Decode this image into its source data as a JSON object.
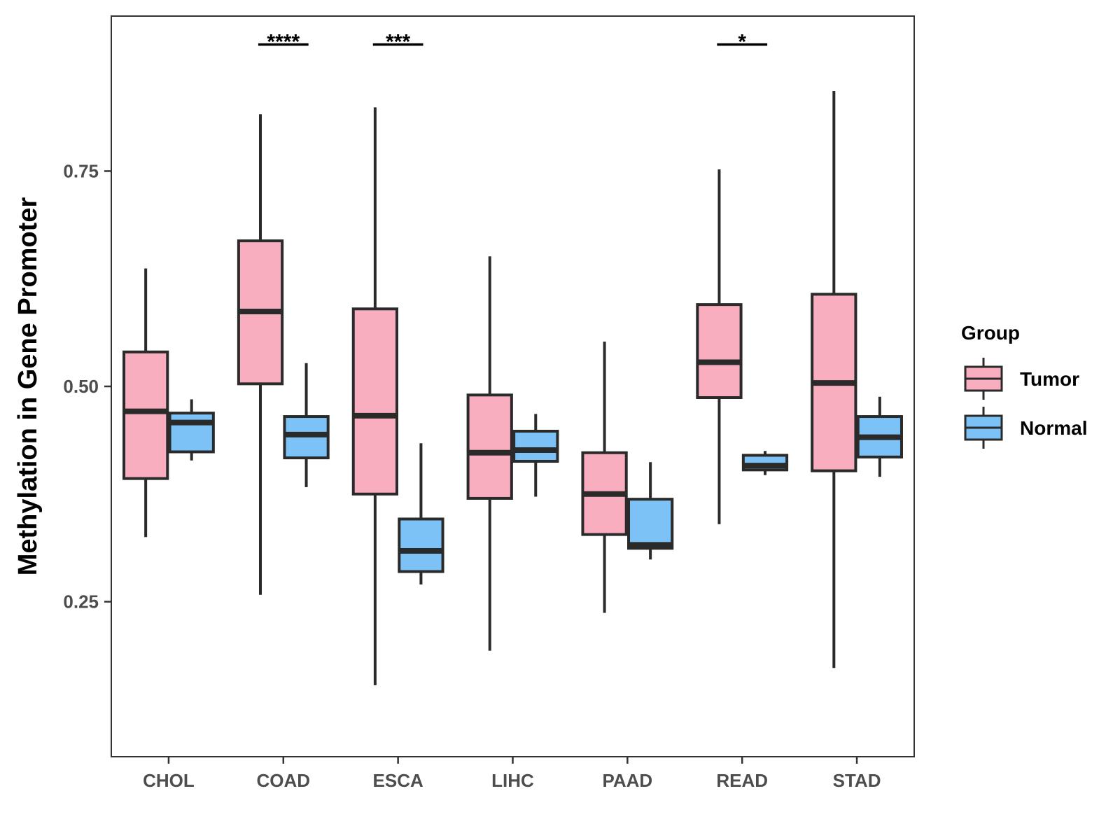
{
  "chart_data": {
    "type": "boxplot",
    "title": "",
    "xlabel": "",
    "ylabel": "Methylation in Gene Promoter",
    "ylim": [
      0.07,
      0.93
    ],
    "yticks": [
      0.25,
      0.5,
      0.75
    ],
    "ytick_labels": [
      "0.25",
      "0.50",
      "0.75"
    ],
    "grid": false,
    "legend_position": "right",
    "categories": [
      "CHOL",
      "COAD",
      "ESCA",
      "LIHC",
      "PAAD",
      "READ",
      "STAD"
    ],
    "legend": {
      "title": "Group",
      "entries": [
        {
          "name": "Tumor",
          "color": "#F9AEC0"
        },
        {
          "name": "Normal",
          "color": "#7CC2F6"
        }
      ]
    },
    "series": [
      {
        "name": "Tumor",
        "color": "#F9AEC0",
        "boxes": [
          {
            "category": "CHOL",
            "whisker_low": 0.325,
            "q1": 0.393,
            "median": 0.471,
            "q3": 0.54,
            "whisker_high": 0.637
          },
          {
            "category": "COAD",
            "whisker_low": 0.258,
            "q1": 0.503,
            "median": 0.587,
            "q3": 0.669,
            "whisker_high": 0.816
          },
          {
            "category": "ESCA",
            "whisker_low": 0.153,
            "q1": 0.375,
            "median": 0.466,
            "q3": 0.59,
            "whisker_high": 0.824
          },
          {
            "category": "LIHC",
            "whisker_low": 0.193,
            "q1": 0.37,
            "median": 0.423,
            "q3": 0.49,
            "whisker_high": 0.651
          },
          {
            "category": "PAAD",
            "whisker_low": 0.237,
            "q1": 0.328,
            "median": 0.375,
            "q3": 0.423,
            "whisker_high": 0.552
          },
          {
            "category": "READ",
            "whisker_low": 0.34,
            "q1": 0.487,
            "median": 0.528,
            "q3": 0.595,
            "whisker_high": 0.752
          },
          {
            "category": "STAD",
            "whisker_low": 0.173,
            "q1": 0.402,
            "median": 0.504,
            "q3": 0.607,
            "whisker_high": 0.843
          }
        ]
      },
      {
        "name": "Normal",
        "color": "#7CC2F6",
        "boxes": [
          {
            "category": "CHOL",
            "whisker_low": 0.414,
            "q1": 0.424,
            "median": 0.458,
            "q3": 0.469,
            "whisker_high": 0.485
          },
          {
            "category": "COAD",
            "whisker_low": 0.383,
            "q1": 0.417,
            "median": 0.444,
            "q3": 0.465,
            "whisker_high": 0.527
          },
          {
            "category": "ESCA",
            "whisker_low": 0.27,
            "q1": 0.285,
            "median": 0.309,
            "q3": 0.346,
            "whisker_high": 0.434
          },
          {
            "category": "LIHC",
            "whisker_low": 0.372,
            "q1": 0.413,
            "median": 0.426,
            "q3": 0.448,
            "whisker_high": 0.468
          },
          {
            "category": "PAAD",
            "whisker_low": 0.299,
            "q1": 0.312,
            "median": 0.316,
            "q3": 0.369,
            "whisker_high": 0.412
          },
          {
            "category": "READ",
            "whisker_low": 0.397,
            "q1": 0.403,
            "median": 0.408,
            "q3": 0.42,
            "whisker_high": 0.425
          },
          {
            "category": "STAD",
            "whisker_low": 0.395,
            "q1": 0.418,
            "median": 0.441,
            "q3": 0.465,
            "whisker_high": 0.488
          }
        ]
      }
    ],
    "annotations": [
      {
        "category": "COAD",
        "label": "****"
      },
      {
        "category": "ESCA",
        "label": "***"
      },
      {
        "category": "READ",
        "label": "*"
      }
    ],
    "significance_y": 0.897
  }
}
